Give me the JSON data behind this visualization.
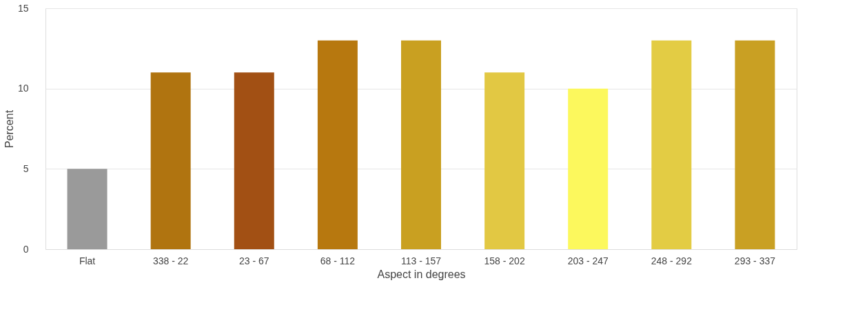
{
  "chart_data": {
    "type": "bar",
    "xlabel": "Aspect in degrees",
    "ylabel": "Percent",
    "categories": [
      "Flat",
      "338 - 22",
      "23 - 67",
      "68 - 112",
      "113 - 157",
      "158 - 202",
      "203 - 247",
      "248 - 292",
      "293 - 337"
    ],
    "values": [
      5,
      11,
      11,
      13,
      13,
      11,
      10,
      13,
      13
    ],
    "colors": [
      "#9a9a9a",
      "#b07410",
      "#a25014",
      "#b7780f",
      "#c9a021",
      "#e2c843",
      "#fcf85d",
      "#e3cc44",
      "#c9a023"
    ],
    "ylim": [
      0,
      15
    ],
    "yticks": [
      0,
      5,
      10,
      15
    ],
    "grid": "y",
    "legend": false
  }
}
